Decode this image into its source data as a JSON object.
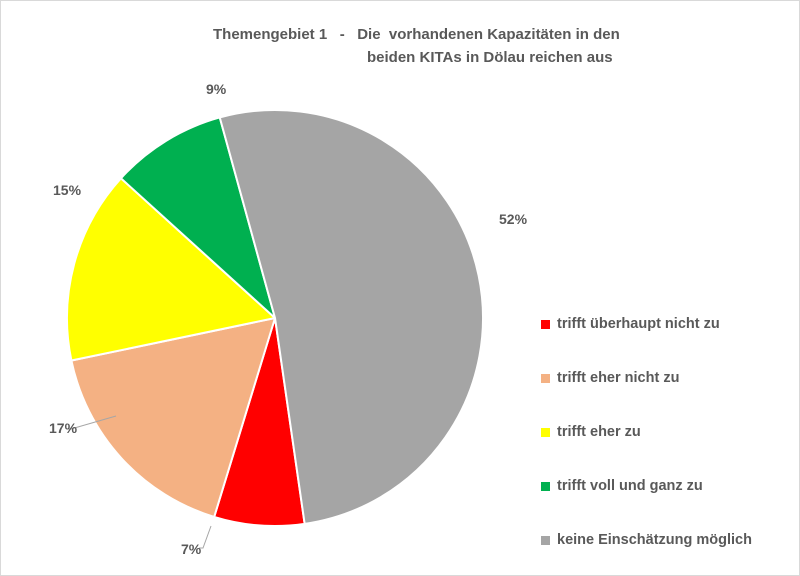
{
  "chart_data": {
    "type": "pie",
    "title_line1": "Themengebiet 1   -   Die  vorhandenen Kapazitäten in den",
    "title_line2": "beiden KITAs in Dölau reichen aus",
    "categories": [
      "trifft überhaupt nicht zu",
      "trifft eher nicht zu",
      "trifft eher zu",
      "trifft voll und ganz zu",
      "keine Einschätzung möglich"
    ],
    "values": [
      7,
      17,
      15,
      9,
      52
    ],
    "data_labels": [
      "7%",
      "17%",
      "15%",
      "9%",
      "52%"
    ],
    "colors": [
      "#ff0000",
      "#f4b183",
      "#ffff00",
      "#00b050",
      "#a5a5a5"
    ],
    "legend_position": "right"
  }
}
